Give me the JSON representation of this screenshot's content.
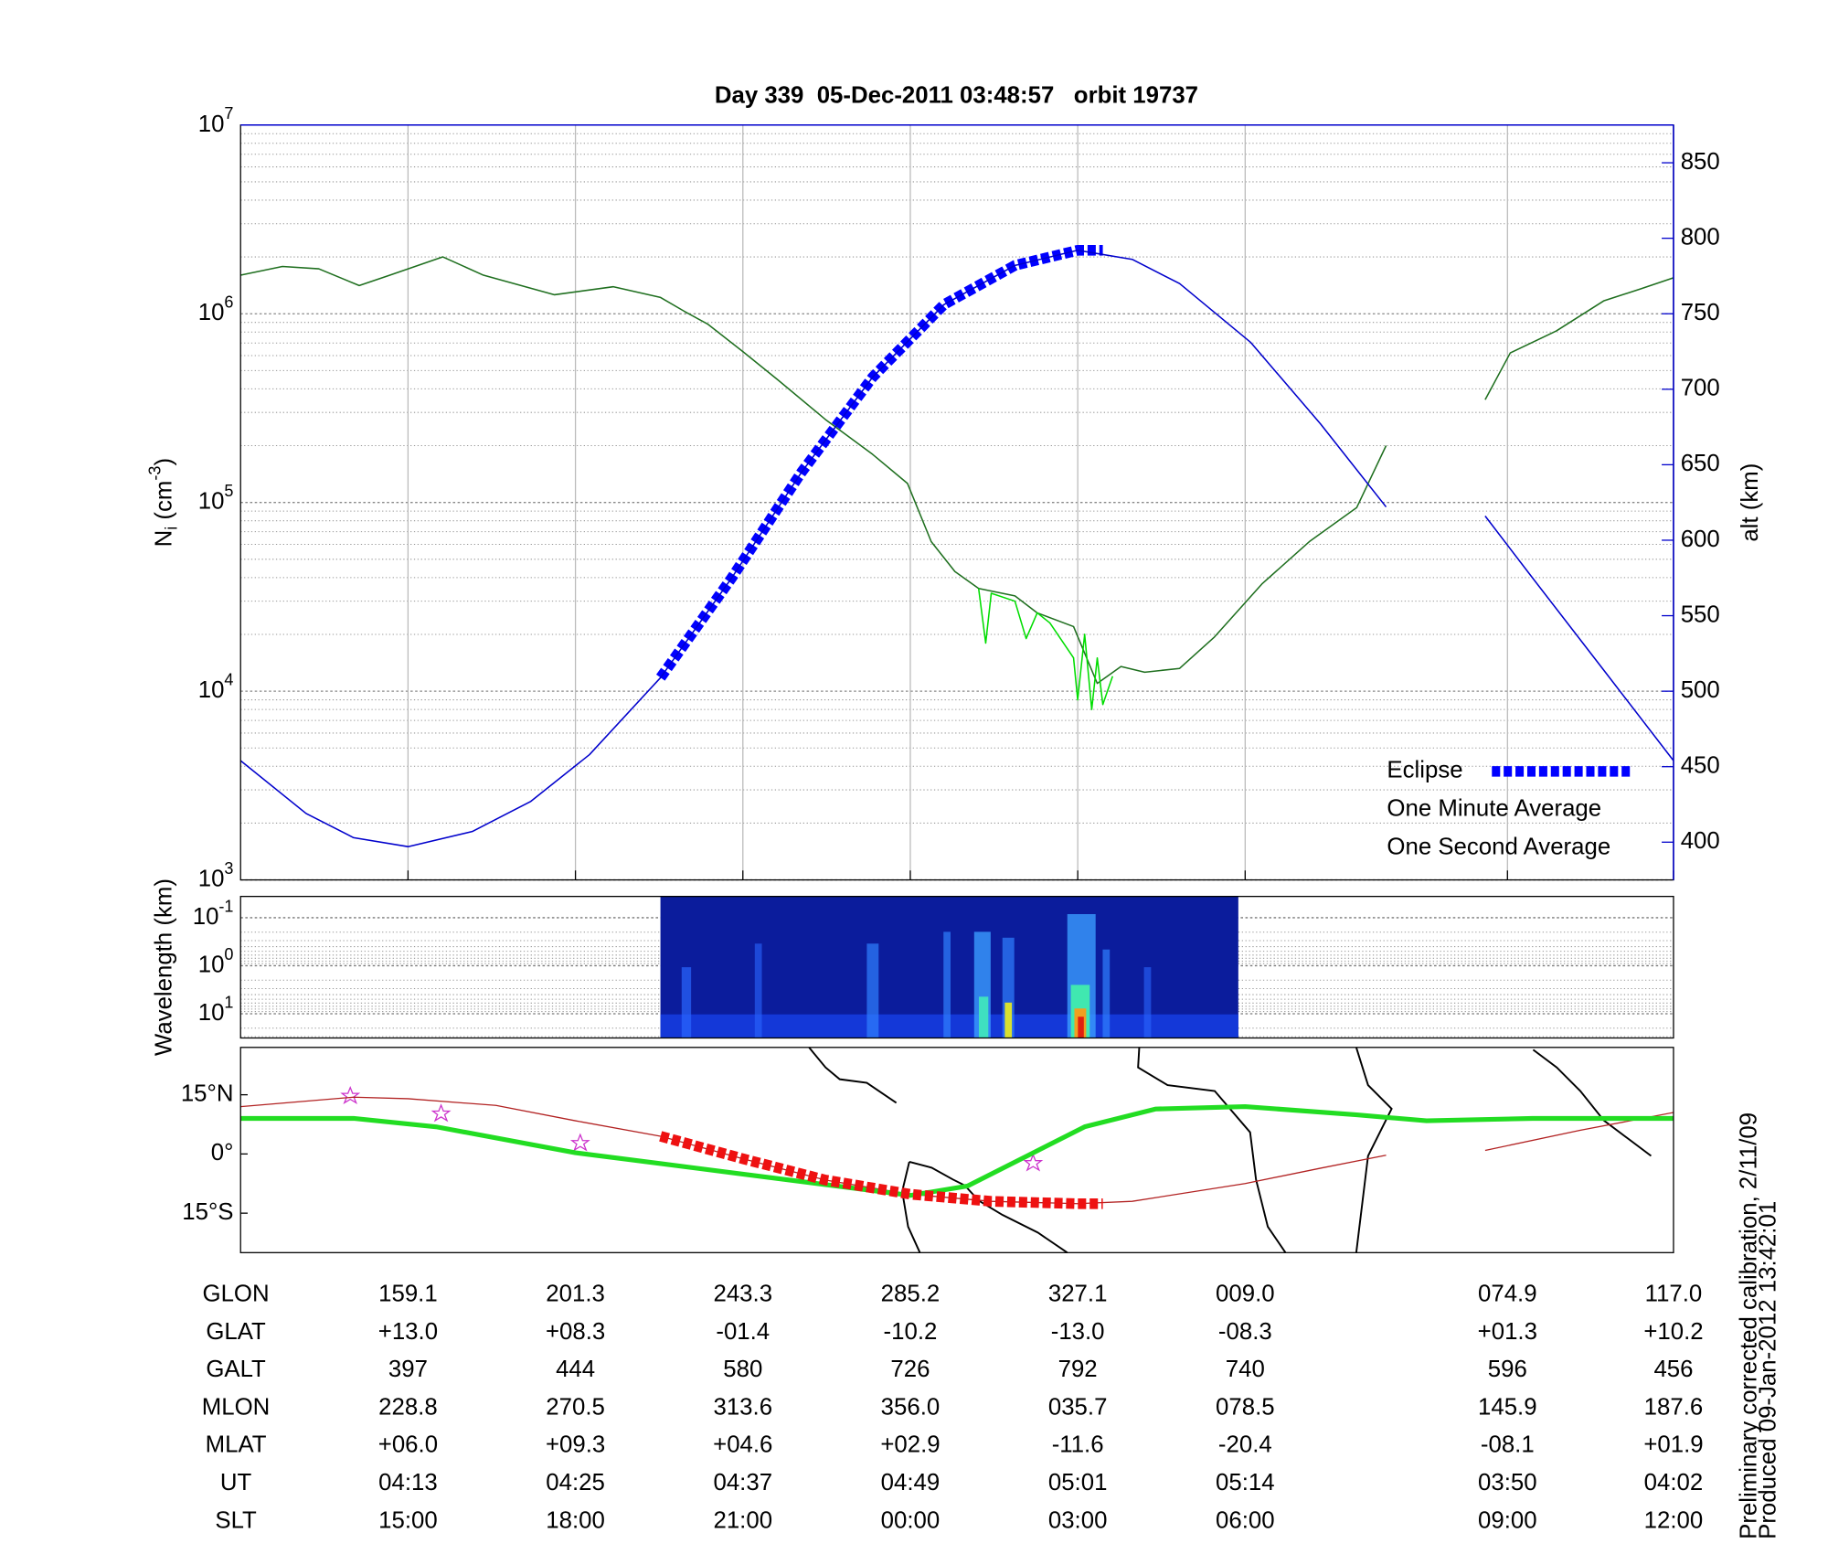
{
  "chart_data": [
    {
      "type": "line",
      "title": "Day 339  05-Dec-2011 03:48:57   orbit 19737",
      "ylabel": {
        "base": "N",
        "sub": "i",
        "unit": " (cm",
        "exponent": "-3",
        "close": ")"
      },
      "y2label": "alt (km)",
      "log_y": true,
      "grid": true,
      "legend": "lower right",
      "xlim": [
        0,
        102.7
      ],
      "xticks": [
        12,
        24,
        36,
        48,
        60,
        72,
        90.8,
        102.7
      ],
      "ylim": [
        1000,
        10000000
      ],
      "yticks": [
        {
          "value": 1000,
          "label": {
            "base": "10",
            "exponent": "3"
          }
        },
        {
          "value": 10000,
          "label": {
            "base": "10",
            "exponent": "4"
          }
        },
        {
          "value": 100000,
          "label": {
            "base": "10",
            "exponent": "5"
          }
        },
        {
          "value": 1000000,
          "label": {
            "base": "10",
            "exponent": "6"
          }
        },
        {
          "value": 10000000,
          "label": {
            "base": "10",
            "exponent": "7"
          }
        }
      ],
      "y2lim": [
        375,
        875
      ],
      "y2ticks": [
        400,
        450,
        500,
        550,
        600,
        650,
        700,
        750,
        800,
        850
      ],
      "y2color": "#0000cc",
      "series": [
        {
          "name": "Eclipse",
          "color": "#0000ff",
          "style": "dashed",
          "axis": "y2",
          "x": [
            30.1,
            35.2,
            40.2,
            45.3,
            50.4,
            55.5,
            60,
            61.8
          ],
          "values": [
            509,
            575,
            645,
            708,
            756,
            782,
            792,
            792
          ]
        },
        {
          "name": "One Minute Average",
          "color": "#1f6f1f",
          "legend_color": "#000000",
          "x": [
            0,
            3.0,
            5.6,
            8.5,
            10.7,
            14.5,
            17.4,
            22.5,
            26.7,
            30.1,
            31.8,
            33.5,
            36,
            38.5,
            41.9,
            45.3,
            47.8,
            49.5,
            51.2,
            52.9,
            55.5,
            57.1,
            59.7,
            61.4,
            63.1,
            64.8,
            67.3,
            69.8,
            73.2,
            76.6,
            80,
            82.1,
            85,
            89.2,
            91,
            94.3,
            97.7,
            100.3,
            102.7
          ],
          "values": [
            1600000,
            1780000,
            1730000,
            1410000,
            1600000,
            2000000,
            1600000,
            1260000,
            1390000,
            1220000,
            1030000,
            880000,
            630000,
            447000,
            276000,
            180000,
            126000,
            62000,
            43000,
            35000,
            32000,
            26000,
            22000,
            11000,
            13500,
            12600,
            13200,
            19400,
            37000,
            62000,
            94000,
            200000,
            null,
            350000,
            620000,
            810000,
            1170000,
            1350000,
            1550000
          ]
        },
        {
          "name": "One Second Average",
          "color": "#00dd00",
          "x": [
            52.9,
            53.4,
            53.8,
            55.5,
            56.3,
            57.1,
            58,
            59.7,
            60,
            60.5,
            61,
            61.4,
            61.8,
            62.5
          ],
          "values": [
            35000,
            18000,
            33000,
            30000,
            19000,
            26000,
            23000,
            15000,
            9000,
            20000,
            8000,
            15000,
            8500,
            12000
          ]
        },
        {
          "color": "#0000cc",
          "axis": "y2",
          "x": [
            0,
            4.7,
            8.1,
            12,
            16.6,
            20.8,
            25,
            30.1,
            35.2,
            40.2,
            45.3,
            50.4,
            55.5,
            60,
            63.9,
            67.3,
            72.4,
            77.4,
            82.1,
            85,
            89.2,
            92.6,
            97.7,
            102.7
          ],
          "values": [
            454,
            419,
            403,
            397,
            407,
            427,
            458,
            509,
            575,
            645,
            708,
            756,
            782,
            792,
            786,
            770,
            731,
            677,
            622,
            null,
            616,
            575,
            514,
            454
          ]
        }
      ]
    },
    {
      "type": "spectrogram",
      "ylabel": "Wavelength (km)",
      "log_y": true,
      "inverted": true,
      "ylim": [
        0.036,
        32
      ],
      "yticks": [
        {
          "value": 0.1,
          "label": {
            "base": "10",
            "exponent": "-1"
          }
        },
        {
          "value": 1,
          "label": {
            "base": "10",
            "exponent": "0"
          }
        },
        {
          "value": 10,
          "label": {
            "base": "10",
            "exponent": "1"
          }
        }
      ]
    },
    {
      "type": "line",
      "xlim": [
        0,
        102.7
      ],
      "ylim": [
        -25,
        27
      ],
      "yticks": [
        {
          "value": 15,
          "label": "15°N"
        },
        {
          "value": 0,
          "label": "0°"
        },
        {
          "value": -15,
          "label": "15°S"
        }
      ],
      "series": [
        {
          "color": "#b22222",
          "x": [
            0,
            8.1,
            12,
            18.3,
            24,
            30.1,
            36,
            41.9,
            48,
            53.8,
            60,
            63.9,
            72,
            77.4,
            82.1,
            85,
            89.2,
            96,
            102.7
          ],
          "values": [
            12,
            14.4,
            14,
            12.3,
            8.4,
            4.5,
            -1.2,
            -6.6,
            -10.2,
            -12,
            -12.6,
            -12,
            -7.5,
            -3.6,
            -0.3,
            null,
            0.9,
            6,
            10.5
          ]
        },
        {
          "color": "#22dd22",
          "style": "thick",
          "x": [
            0,
            8.1,
            14.0,
            24,
            36,
            48,
            52.1,
            56.3,
            60.5,
            65.6,
            72,
            80,
            85,
            92.6,
            102.7
          ],
          "values": [
            9,
            9,
            6.9,
            0.3,
            -5.1,
            -10.5,
            -8.1,
            -0.6,
            6.9,
            11.4,
            12,
            9.9,
            8.4,
            9,
            9
          ]
        },
        {
          "color": "#ee1111",
          "style": "dashed",
          "x": [
            30.1,
            36,
            41.9,
            48,
            53.8,
            60,
            61.8
          ],
          "values": [
            4.5,
            -1.2,
            -6.6,
            -10.2,
            -12,
            -12.6,
            -12.6
          ]
        }
      ]
    }
  ],
  "table": {
    "rows": [
      {
        "label": "GLON",
        "values": [
          "159.1",
          "201.3",
          "243.3",
          "285.2",
          "327.1",
          "009.0",
          "074.9",
          "117.0"
        ]
      },
      {
        "label": "GLAT",
        "values": [
          "+13.0",
          "+08.3",
          "-01.4",
          "-10.2",
          "-13.0",
          "-08.3",
          "+01.3",
          "+10.2"
        ]
      },
      {
        "label": "GALT",
        "values": [
          "397",
          "444",
          "580",
          "726",
          "792",
          "740",
          "596",
          "456"
        ]
      },
      {
        "label": "MLON",
        "values": [
          "228.8",
          "270.5",
          "313.6",
          "356.0",
          "035.7",
          "078.5",
          "145.9",
          "187.6"
        ]
      },
      {
        "label": "MLAT",
        "values": [
          "+06.0",
          "+09.3",
          "+04.6",
          "+02.9",
          "-11.6",
          "-20.4",
          "-08.1",
          "+01.9"
        ]
      },
      {
        "label": "UT",
        "values": [
          "04:13",
          "04:25",
          "04:37",
          "04:49",
          "05:01",
          "05:14",
          "03:50",
          "04:02"
        ]
      },
      {
        "label": "SLT",
        "values": [
          "15:00",
          "18:00",
          "21:00",
          "00:00",
          "03:00",
          "06:00",
          "09:00",
          "12:00"
        ]
      }
    ]
  },
  "footer": [
    "Preliminary corrected calibration, 2/11/09",
    "Produced 09-Jan-2012 13:42:01"
  ]
}
